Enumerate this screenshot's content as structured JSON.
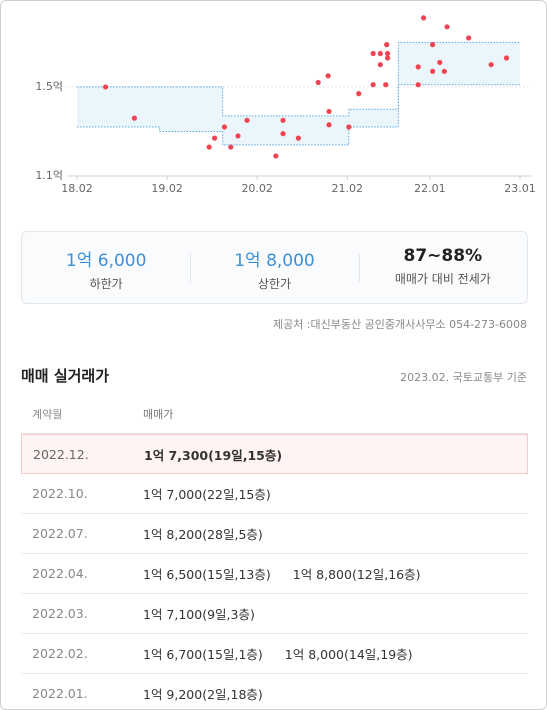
{
  "chart_data": {
    "type": "scatter",
    "x": [
      2018.4,
      2018.72,
      2019.55,
      2019.61,
      2019.72,
      2019.79,
      2019.87,
      2019.97,
      2020.29,
      2020.37,
      2020.37,
      2020.54,
      2020.76,
      2020.87,
      2020.88,
      2020.88,
      2021.1,
      2021.21,
      2021.37,
      2021.37,
      2021.45,
      2021.45,
      2021.51,
      2021.52,
      2021.53,
      2021.53,
      2021.87,
      2021.87,
      2021.93,
      2022.03,
      2022.03,
      2022.11,
      2022.19,
      2022.16,
      2022.43,
      2022.68,
      2022.85
    ],
    "values": [
      1.5,
      1.36,
      1.23,
      1.27,
      1.32,
      1.23,
      1.28,
      1.35,
      1.19,
      1.35,
      1.29,
      1.27,
      1.52,
      1.55,
      1.39,
      1.33,
      1.32,
      1.47,
      1.65,
      1.51,
      1.6,
      1.65,
      1.51,
      1.69,
      1.65,
      1.63,
      1.59,
      1.51,
      1.81,
      1.69,
      1.57,
      1.61,
      1.77,
      1.57,
      1.72,
      1.6,
      1.63
    ],
    "color": "#f04452",
    "band": {
      "x": [
        2018.083,
        2019.0,
        2019.0,
        2019.7,
        2019.7,
        2021.1,
        2021.1,
        2021.65,
        2021.65,
        2023.0
      ],
      "lower": [
        1.32,
        1.32,
        1.3,
        1.3,
        1.24,
        1.24,
        1.32,
        1.32,
        1.51,
        1.51
      ],
      "upper": [
        1.5,
        1.5,
        1.5,
        1.5,
        1.37,
        1.37,
        1.4,
        1.4,
        1.7,
        1.7
      ],
      "color": "#5aa9e6"
    },
    "xlim": [
      2018.083,
      2023.0
    ],
    "ylim": [
      1.1,
      1.85
    ],
    "xticks": [
      {
        "value": 2018.083,
        "label": "18.02"
      },
      {
        "value": 2019.083,
        "label": "19.02"
      },
      {
        "value": 2020.083,
        "label": "20.02"
      },
      {
        "value": 2021.083,
        "label": "21.02"
      },
      {
        "value": 2022.0,
        "label": "22.01"
      },
      {
        "value": 2023.0,
        "label": "23.01"
      }
    ],
    "yticks": [
      {
        "value": 1.1,
        "label": "1.1억"
      },
      {
        "value": 1.5,
        "label": "1.5억"
      }
    ]
  },
  "summary": [
    {
      "value": "1억 6,000",
      "label": "하한가"
    },
    {
      "value": "1억 8,000",
      "label": "상한가"
    },
    {
      "value": "87~88%",
      "label": "매매가 대비 전세가"
    }
  ],
  "source": "제공처 :대신부동산 공인중개사사무소 054-273-6008",
  "transactions": {
    "title": "매매 실거래가",
    "basis": "2023.02. 국토교통부 기준",
    "header": [
      "계약월",
      "매매가"
    ],
    "rows": [
      {
        "month": "2022.12.",
        "deals": [
          "1억 7,300(19일,15층)"
        ]
      },
      {
        "month": "2022.10.",
        "deals": [
          "1억 7,000(22일,15층)"
        ]
      },
      {
        "month": "2022.07.",
        "deals": [
          "1억 8,200(28일,5층)"
        ]
      },
      {
        "month": "2022.04.",
        "deals": [
          "1억 6,500(15일,13층)",
          "1억 8,800(12일,16층)"
        ]
      },
      {
        "month": "2022.03.",
        "deals": [
          "1억 7,100(9일,3층)"
        ]
      },
      {
        "month": "2022.02.",
        "deals": [
          "1억 6,700(15일,1층)",
          "1억 8,000(14일,19층)"
        ]
      },
      {
        "month": "2022.01.",
        "deals": [
          "1억 9,200(2일,18층)"
        ]
      }
    ]
  }
}
